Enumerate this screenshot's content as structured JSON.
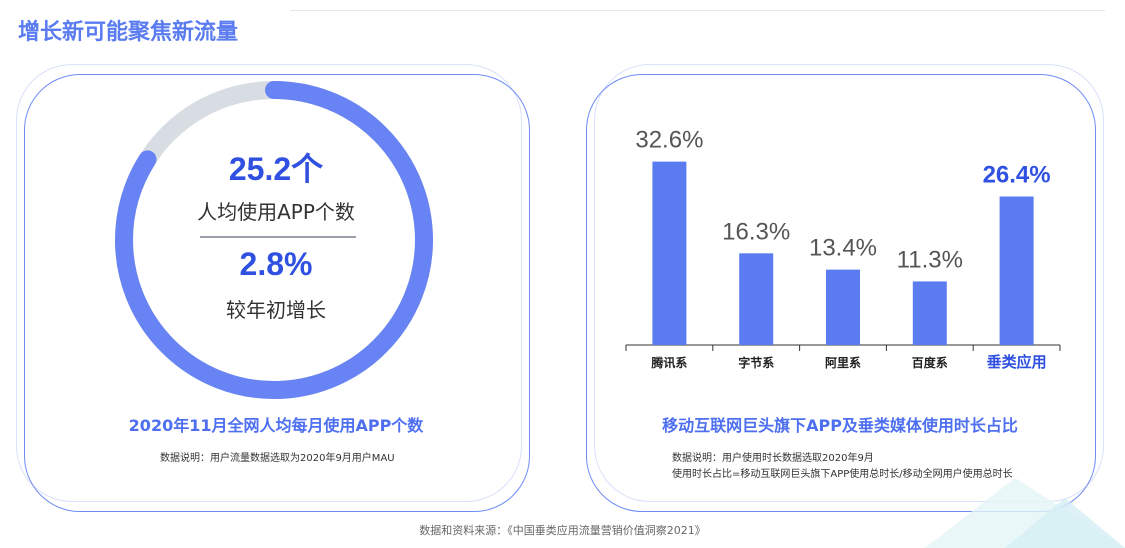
{
  "page": {
    "title": "增长新可能聚焦新流量",
    "source": "数据和资料来源：《中国垂类应用流量营销价值洞察2021》"
  },
  "left_panel": {
    "metric1_value": "25.2个",
    "metric1_label": "人均使用APP个数",
    "metric2_value": "2.8%",
    "metric2_label": "较年初增长",
    "caption": "2020年11月全网人均每月使用APP个数",
    "note": "数据说明：用户流量数据选取为2020年9月用户MAU"
  },
  "right_panel": {
    "caption": "移动互联网巨头旗下APP及垂类媒体使用时长占比",
    "note_line1": "数据说明：用户使用时长数据选取2020年9月",
    "note_line2": "使用时长占比=移动互联网巨头旗下APP使用总时长/移动全网用户使用总时长"
  },
  "colors": {
    "accent": "#5b7cf0",
    "bar": "#5b7cf0",
    "highlight_text": "#2f50e0",
    "donut_track": "#d8dde3",
    "donut_fill": "#6883f3"
  },
  "chart_data": [
    {
      "type": "pie",
      "values": [
        84,
        16
      ],
      "value_labels": [
        "25.2个",
        "2.8%"
      ]
    },
    {
      "type": "bar",
      "categories": [
        "腾讯系",
        "字节系",
        "阿里系",
        "百度系",
        "垂类应用"
      ],
      "values": [
        32.6,
        16.3,
        13.4,
        11.3,
        26.4
      ],
      "value_labels": [
        "32.6%",
        "16.3%",
        "13.4%",
        "11.3%",
        "26.4%"
      ],
      "highlight_index": 4,
      "ylim": [
        0,
        40
      ]
    }
  ]
}
